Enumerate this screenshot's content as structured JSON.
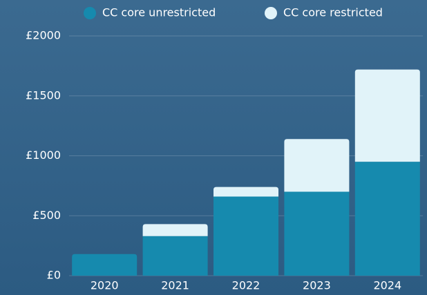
{
  "chart_data": {
    "type": "stacked_bar",
    "categories": [
      "2020",
      "2021",
      "2022",
      "2023",
      "2024"
    ],
    "series": [
      {
        "name": "CC core unrestricted",
        "color": "#168aae",
        "values": [
          180,
          330,
          660,
          700,
          950
        ]
      },
      {
        "name": "CC core restricted",
        "color": "#e1f3f9",
        "values": [
          0,
          100,
          80,
          440,
          770
        ]
      }
    ],
    "ylim": [
      0,
      2000
    ],
    "yticks": [
      {
        "value": 0,
        "label": "£0"
      },
      {
        "value": 500,
        "label": "£500"
      },
      {
        "value": 1000,
        "label": "£1000"
      },
      {
        "value": 1500,
        "label": "£1500"
      },
      {
        "value": 2000,
        "label": "£2000"
      }
    ],
    "grid": true
  }
}
